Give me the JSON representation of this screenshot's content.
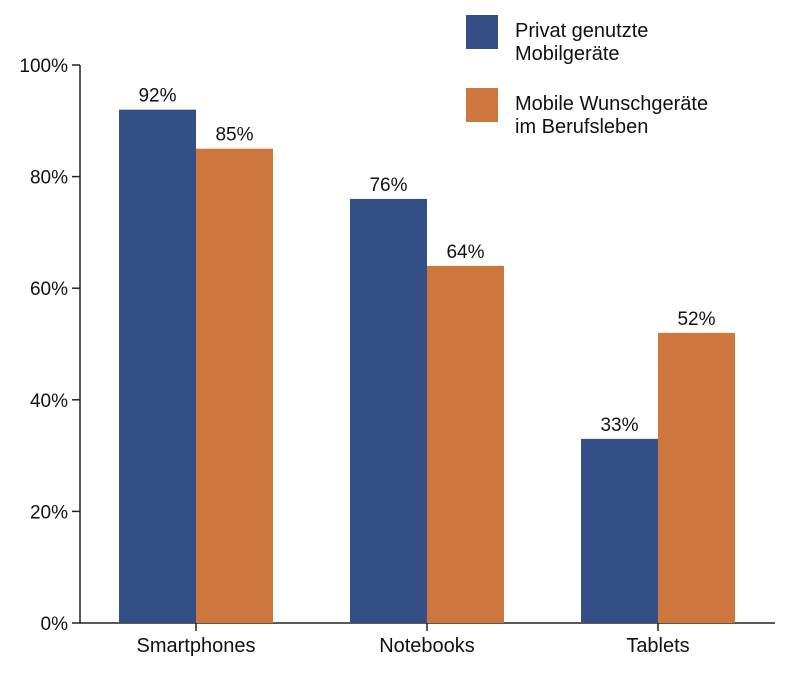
{
  "chart_data": {
    "type": "bar",
    "title": "",
    "xlabel": "",
    "ylabel": "",
    "categories": [
      "Smartphones",
      "Notebooks",
      "Tablets"
    ],
    "series": [
      {
        "name": "Privat genutzte\nMobilgeräte",
        "color": "#344e86",
        "values": [
          92,
          76,
          33
        ],
        "labels": [
          "92%",
          "76%",
          "33%"
        ]
      },
      {
        "name": "Mobile Wunschgeräte\nim Berufsleben",
        "color": "#cd763d",
        "values": [
          85,
          64,
          52
        ],
        "labels": [
          "85%",
          "64%",
          "52%"
        ]
      }
    ],
    "ylim": [
      0,
      100
    ],
    "yticks": [
      0,
      20,
      40,
      60,
      80,
      100
    ],
    "ytick_labels": [
      "0%",
      "20%",
      "40%",
      "60%",
      "80%",
      "100%"
    ],
    "grid": false,
    "legend_position": "top-right"
  }
}
